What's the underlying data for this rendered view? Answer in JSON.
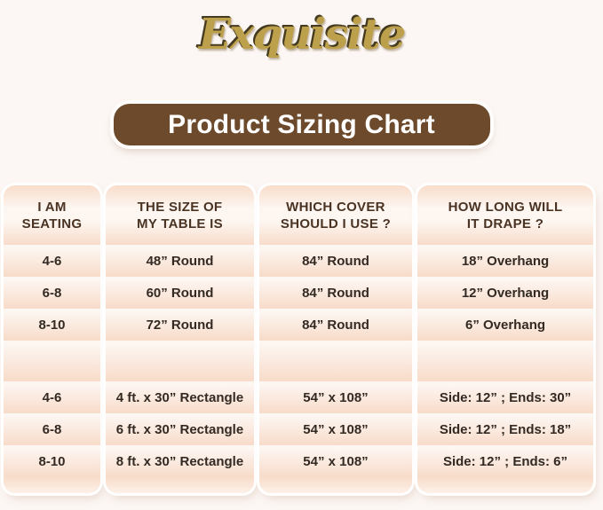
{
  "brand": {
    "logo_text": "Exquisite",
    "logo_color": "#bda04b"
  },
  "banner": {
    "title": "Product Sizing Chart",
    "background": "#6d4a2b",
    "text_color": "#ffffff"
  },
  "colors": {
    "page_background": "#fcf7f4",
    "row_peach": "#f8dcca",
    "row_light": "#fdf7f3",
    "header_text": "#4a3322",
    "cell_text": "#332a23"
  },
  "table": {
    "headers": [
      [
        "I AM",
        "SEATING"
      ],
      [
        "THE SIZE OF",
        "MY TABLE IS"
      ],
      [
        "WHICH COVER",
        "SHOULD I USE ?"
      ],
      [
        "HOW LONG WILL",
        "IT DRAPE ?"
      ]
    ]
  },
  "chart_data": {
    "type": "table",
    "title": "Product Sizing Chart",
    "columns": [
      "I AM SEATING",
      "THE SIZE OF MY TABLE IS",
      "WHICH COVER SHOULD I USE ?",
      "HOW LONG WILL IT DRAPE ?"
    ],
    "rows": [
      [
        "4-6",
        "48” Round",
        "84” Round",
        "18” Overhang"
      ],
      [
        "6-8",
        "60” Round",
        "84” Round",
        "12” Overhang"
      ],
      [
        "8-10",
        "72” Round",
        "84” Round",
        "6” Overhang"
      ],
      [
        "4-6",
        "4 ft. x 30” Rectangle",
        "54” x 108”",
        "Side: 12” ; Ends: 30”"
      ],
      [
        "6-8",
        "6 ft. x 30” Rectangle",
        "54” x 108”",
        "Side: 12” ; Ends: 18”"
      ],
      [
        "8-10",
        "8 ft. x 30” Rectangle",
        "54” x 108”",
        "Side: 12” ; Ends: 6”"
      ]
    ]
  }
}
